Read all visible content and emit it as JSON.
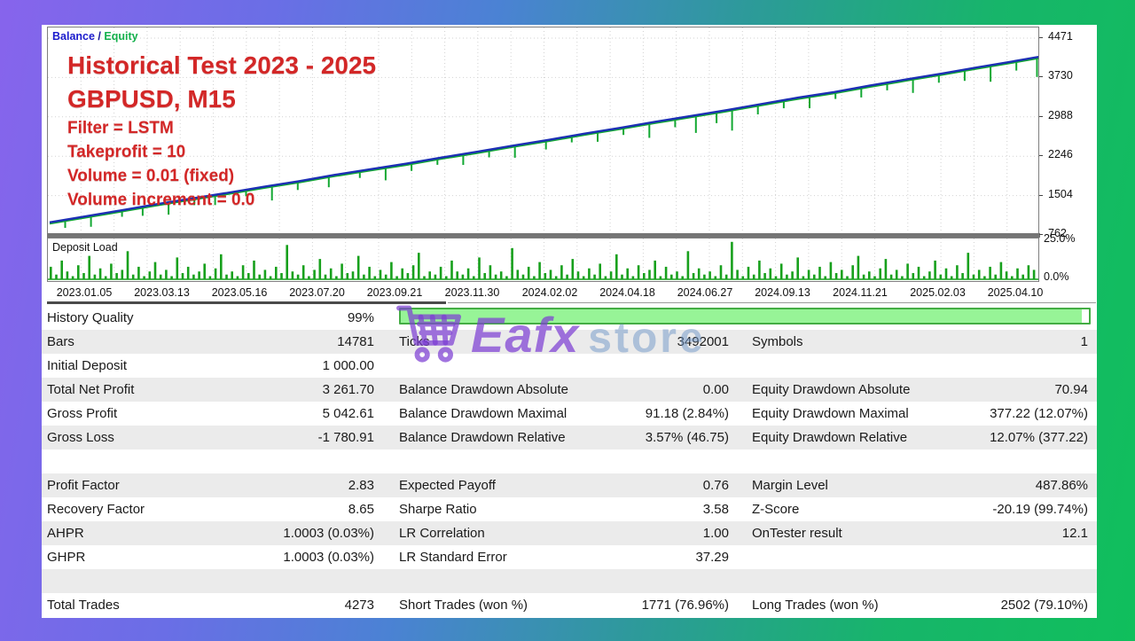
{
  "report": {
    "legend": {
      "balance_label": "Balance",
      "separator": " / ",
      "equity_label": "Equity"
    },
    "annotations": {
      "title": "Historical Test 2023 - 2025",
      "symbol": "GBPUSD, M15",
      "lines": [
        "Filter = LSTM",
        "Takeprofit = 10",
        "Volume = 0.01 (fixed)",
        "Volume increment = 0.0"
      ],
      "color": "#d32727"
    },
    "colors": {
      "balance_line": "#1c2fb4",
      "equity_line": "#12a832",
      "deposit_bars": "#17a01c",
      "grid": "#d2d2d2",
      "progress_fill": "#97f497",
      "progress_border": "#44ad44",
      "frame_gradient_left": "#8764ec",
      "frame_gradient_right": "#10bf5c"
    }
  },
  "deposit": {
    "label": "Deposit Load",
    "max_label": "25.0%",
    "min_label": "0.0%"
  },
  "watermark": {
    "part1": "Eafx",
    "part2": "store",
    "icon": "shopping-cart-icon"
  },
  "chart_data": [
    {
      "type": "line",
      "name": "balance-equity-curve",
      "title": "Historical Test 2023 - 2025 GBPUSD, M15",
      "ylim": [
        620,
        4700
      ],
      "y_ticks": [
        4471,
        3730,
        2988,
        2246,
        1504,
        762
      ],
      "x_tick_labels": [
        "2023.01.05",
        "2023.03.13",
        "2023.05.16",
        "2023.07.20",
        "2023.09.21",
        "2023.11.30",
        "2024.02.02",
        "2024.04.18",
        "2024.06.27",
        "2024.09.13",
        "2024.11.21",
        "2025.02.03",
        "2025.04.10"
      ],
      "x_unit": "fraction_of_range",
      "series": [
        {
          "name": "Balance",
          "x": [
            0,
            0.034,
            0.069,
            0.103,
            0.138,
            0.172,
            0.207,
            0.241,
            0.276,
            0.31,
            0.345,
            0.379,
            0.414,
            0.448,
            0.483,
            0.517,
            0.552,
            0.586,
            0.621,
            0.655,
            0.69,
            0.724,
            0.759,
            0.793,
            0.828,
            0.862,
            0.897,
            0.931,
            0.966,
            1
          ],
          "values": [
            1000,
            1110,
            1225,
            1340,
            1450,
            1555,
            1670,
            1775,
            1895,
            2000,
            2105,
            2220,
            2330,
            2445,
            2555,
            2670,
            2780,
            2895,
            3005,
            3115,
            3235,
            3350,
            3455,
            3575,
            3690,
            3800,
            3920,
            4030,
            4150,
            4262
          ]
        },
        {
          "name": "Equity",
          "note": "tracks balance with downward drawdown spikes",
          "spikes": [
            [
              0.015,
              120
            ],
            [
              0.04,
              180
            ],
            [
              0.07,
              90
            ],
            [
              0.09,
              140
            ],
            [
              0.115,
              200
            ],
            [
              0.14,
              100
            ],
            [
              0.16,
              160
            ],
            [
              0.19,
              90
            ],
            [
              0.215,
              250
            ],
            [
              0.24,
              130
            ],
            [
              0.27,
              180
            ],
            [
              0.3,
              100
            ],
            [
              0.325,
              220
            ],
            [
              0.35,
              120
            ],
            [
              0.375,
              90
            ],
            [
              0.4,
              170
            ],
            [
              0.425,
              110
            ],
            [
              0.45,
              200
            ],
            [
              0.48,
              140
            ],
            [
              0.505,
              90
            ],
            [
              0.53,
              160
            ],
            [
              0.555,
              110
            ],
            [
              0.58,
              250
            ],
            [
              0.605,
              130
            ],
            [
              0.625,
              300
            ],
            [
              0.645,
              180
            ],
            [
              0.66,
              370
            ],
            [
              0.685,
              150
            ],
            [
              0.71,
              120
            ],
            [
              0.735,
              200
            ],
            [
              0.76,
              100
            ],
            [
              0.785,
              160
            ],
            [
              0.81,
              110
            ],
            [
              0.835,
              240
            ],
            [
              0.86,
              130
            ],
            [
              0.885,
              180
            ],
            [
              0.91,
              280
            ],
            [
              0.935,
              150
            ],
            [
              0.955,
              340
            ],
            [
              0.975,
              120
            ]
          ]
        }
      ],
      "legend_position": "top-left",
      "grid": "dotted"
    },
    {
      "type": "bar",
      "name": "deposit-load",
      "title": "Deposit Load",
      "unit": "%",
      "ylim": [
        0,
        25
      ],
      "values": [
        8,
        3,
        12,
        5,
        2,
        9,
        4,
        15,
        3,
        7,
        2,
        10,
        4,
        6,
        18,
        3,
        8,
        2,
        5,
        11,
        3,
        6,
        2,
        14,
        4,
        8,
        3,
        5,
        10,
        2,
        7,
        16,
        3,
        5,
        2,
        9,
        4,
        12,
        3,
        6,
        2,
        8,
        4,
        22,
        5,
        3,
        9,
        2,
        6,
        13,
        3,
        7,
        2,
        10,
        4,
        5,
        15,
        3,
        8,
        2,
        6,
        3,
        11,
        2,
        7,
        4,
        9,
        17,
        2,
        5,
        3,
        8,
        2,
        12,
        5,
        3,
        7,
        2,
        14,
        4,
        9,
        3,
        5,
        2,
        20,
        6,
        3,
        8,
        2,
        11,
        4,
        6,
        2,
        9,
        3,
        13,
        5,
        2,
        7,
        3,
        10,
        2,
        5,
        16,
        3,
        7,
        2,
        9,
        4,
        6,
        12,
        2,
        8,
        3,
        5,
        2,
        18,
        4,
        7,
        3,
        5,
        2,
        9,
        3,
        24,
        6,
        2,
        8,
        3,
        12,
        4,
        7,
        2,
        10,
        3,
        5,
        14,
        2,
        6,
        3,
        8,
        2,
        11,
        4,
        6,
        2,
        9,
        15,
        3,
        5,
        2,
        7,
        13,
        3,
        6,
        2,
        10,
        4,
        8,
        2,
        5,
        12,
        3,
        7,
        2,
        9,
        4,
        17,
        3,
        6,
        2,
        8,
        3,
        11,
        5,
        2,
        7,
        3,
        9,
        6
      ]
    }
  ],
  "table": {
    "progress": {
      "percent": 99
    },
    "rows": [
      {
        "cells": [
          "History Quality",
          "99%",
          "",
          "",
          "",
          ""
        ],
        "progress": true
      },
      {
        "cells": [
          "Bars",
          "14781",
          "Ticks",
          "3492001",
          "Symbols",
          "1"
        ]
      },
      {
        "cells": [
          "Initial Deposit",
          "1 000.00",
          "",
          "",
          "",
          ""
        ]
      },
      {
        "cells": [
          "Total Net Profit",
          "3 261.70",
          "Balance Drawdown Absolute",
          "0.00",
          "Equity Drawdown Absolute",
          "70.94"
        ]
      },
      {
        "cells": [
          "Gross Profit",
          "5 042.61",
          "Balance Drawdown Maximal",
          "91.18 (2.84%)",
          "Equity Drawdown Maximal",
          "377.22 (12.07%)"
        ]
      },
      {
        "cells": [
          "Gross Loss",
          "-1 780.91",
          "Balance Drawdown Relative",
          "3.57% (46.75)",
          "Equity Drawdown Relative",
          "12.07% (377.22)"
        ]
      },
      {
        "cells": [
          "",
          "",
          "",
          "",
          "",
          ""
        ]
      },
      {
        "cells": [
          "Profit Factor",
          "2.83",
          "Expected Payoff",
          "0.76",
          "Margin Level",
          "487.86%"
        ]
      },
      {
        "cells": [
          "Recovery Factor",
          "8.65",
          "Sharpe Ratio",
          "3.58",
          "Z-Score",
          "-20.19 (99.74%)"
        ]
      },
      {
        "cells": [
          "AHPR",
          "1.0003 (0.03%)",
          "LR Correlation",
          "1.00",
          "OnTester result",
          "12.1"
        ]
      },
      {
        "cells": [
          "GHPR",
          "1.0003 (0.03%)",
          "LR Standard Error",
          "37.29",
          "",
          ""
        ]
      },
      {
        "cells": [
          "",
          "",
          "",
          "",
          "",
          ""
        ]
      },
      {
        "cells": [
          "Total Trades",
          "4273",
          "Short Trades (won %)",
          "1771 (76.96%)",
          "Long Trades (won %)",
          "2502 (79.10%)"
        ]
      }
    ]
  }
}
